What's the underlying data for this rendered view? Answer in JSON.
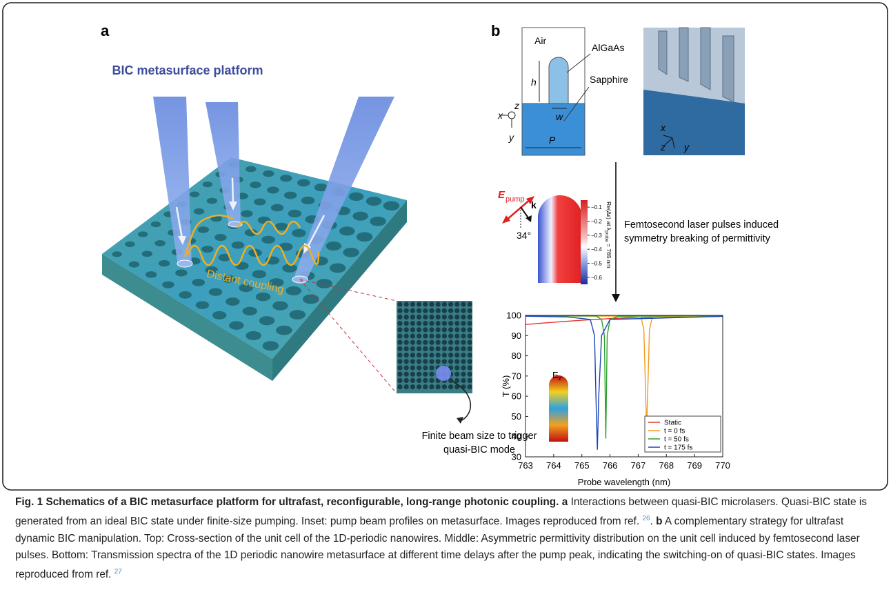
{
  "panel_a": {
    "label": "a",
    "title": "BIC metasurface platform",
    "coupling_label": "Distant coupling",
    "inset_note": [
      "Finite beam size to trigger",
      "quasi-BIC mode"
    ]
  },
  "panel_b": {
    "label": "b",
    "cross_section": {
      "air": "Air",
      "algaas": "AlGaAs",
      "sapphire": "Sapphire",
      "h": "h",
      "w": "w",
      "p": "P",
      "axes": [
        "x",
        "z",
        "y"
      ]
    },
    "perspective_axes": [
      "x",
      "z",
      "y"
    ],
    "pump": {
      "e": "E",
      "e_sub": "pump",
      "k": "k",
      "angle": "34°"
    },
    "colorbar": {
      "lim": [
        -0.65,
        -0.05
      ],
      "ticks": [
        {
          "value": -0.1,
          "label": "−0.1"
        },
        {
          "value": -0.2,
          "label": "−0.2"
        },
        {
          "value": -0.3,
          "label": "−0.3"
        },
        {
          "value": -0.4,
          "label": "−0.4"
        },
        {
          "value": -0.5,
          "label": "−0.5"
        },
        {
          "value": -0.6,
          "label": "−0.6"
        }
      ],
      "label_main": "Re(Δε) at λ",
      "label_sub": "probe",
      "label_end": " = 765 nm"
    },
    "arrow_note": [
      "Femtosecond laser pulses induced",
      "symmetry breaking of permittivity"
    ]
  },
  "chart_data": {
    "type": "line",
    "x_label": "Probe wavelength (nm)",
    "y_label": "T (%)",
    "xlim": [
      763,
      770
    ],
    "ylim": [
      30,
      100
    ],
    "xticks": [
      763,
      764,
      765,
      766,
      767,
      768,
      769,
      770
    ],
    "yticks": [
      30,
      40,
      50,
      60,
      70,
      80,
      90,
      100
    ],
    "inset_label": "E",
    "inset_sub": "z",
    "series": [
      {
        "name": "Static",
        "color": "#e8332b",
        "x": [
          763,
          764,
          765,
          766,
          767,
          768,
          769,
          770
        ],
        "values": [
          95.5,
          96.6,
          97.6,
          98.4,
          99.0,
          99.3,
          99.5,
          99.6
        ]
      },
      {
        "name": "t = 0 fs",
        "color": "#f39a1e",
        "x": [
          763,
          766,
          767.1,
          767.2,
          767.3,
          767.4,
          767.5,
          768,
          770
        ],
        "values": [
          99.6,
          99.7,
          99,
          93,
          43.5,
          93,
          99,
          99.6,
          99.5
        ]
      },
      {
        "name": "t = 50 fs",
        "color": "#2da02c",
        "x": [
          763,
          765.5,
          765.7,
          765.8,
          765.85,
          765.9,
          766.0,
          766.3,
          770
        ],
        "values": [
          99.8,
          99.7,
          98,
          90,
          39,
          90,
          98,
          99.6,
          99.8
        ]
      },
      {
        "name": "t = 175 fs",
        "color": "#1c45b8",
        "x": [
          763,
          764.5,
          765.3,
          765.45,
          765.5,
          765.55,
          765.6,
          765.7,
          766,
          770
        ],
        "values": [
          99.6,
          99.2,
          98,
          90,
          60,
          33.5,
          60,
          90,
          98,
          99.5
        ]
      }
    ]
  },
  "caption": {
    "title": "Fig. 1 Schematics of a BIC metasurface platform for ultrafast, reconfigurable, long-range photonic coupling.",
    "a_label": "a",
    "a_text": "Interactions between quasi-BIC microlasers. Quasi-BIC state is generated from an ideal BIC state under finite-size pumping. Inset: pump beam profiles on metasurface. Images reproduced from ref.",
    "a_ref": "26",
    "b_label": "b",
    "b_text": "A complementary strategy for ultrafast dynamic BIC manipulation. Top: Cross-section of the unit cell of the 1D-periodic nanowires. Middle: Asymmetric permittivity distribution on the unit cell induced by femtosecond laser pulses. Bottom: Transmission spectra of the 1D periodic nanowire metasurface at different time delays after the pump peak, indicating the switching-on of quasi-BIC states. Images reproduced from ref.",
    "b_ref": "27"
  }
}
